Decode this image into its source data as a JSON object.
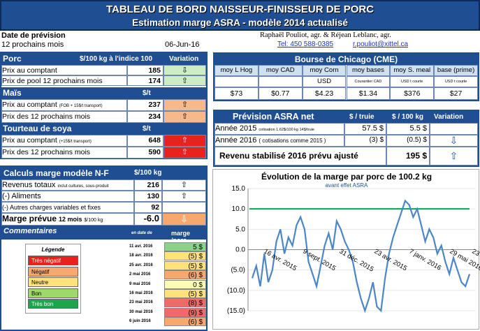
{
  "title": {
    "line1": "TABLEAU DE BORD NAISSEUR-FINISSEUR DE PORC",
    "line2": "Estimation marge ASRA - modèle 2014 actualisé"
  },
  "header": {
    "date_label": "Date de prévision",
    "period": "12 prochains mois",
    "date": "06-Jun-16",
    "authors": "Raphaël Pouliot, agr.     &     Réjean Leblanc, agr.",
    "tel": "Tel:    450 588-0385",
    "email": "r.pouliot@xittel.ca"
  },
  "porc": {
    "title": "Porc",
    "unit": "$/100 kg à l'indice 100",
    "variation": "Variation",
    "rows": [
      {
        "label": "Prix au comptant",
        "value": "185",
        "arrow": "⇩"
      },
      {
        "label": "Prix de pool 12 prochains mois",
        "value": "174",
        "arrow": "⇧"
      }
    ]
  },
  "mais": {
    "title": "Maïs",
    "unit": "$/t",
    "rows": [
      {
        "label": "Prix au comptant",
        "sub": "(FOB + 15$/t transport)",
        "value": "237",
        "arrow": "⇧"
      },
      {
        "label": "Prix des 12 prochains mois",
        "value": "234",
        "arrow": "⇧"
      }
    ]
  },
  "soya": {
    "title": "Tourteau de soya",
    "unit": "$/t",
    "rows": [
      {
        "label": "Prix au comptant",
        "sub": "(+15$/t transport)",
        "value": "648",
        "arrow": "⇧"
      },
      {
        "label": "Prix des 12 prochains mois",
        "value": "590",
        "arrow": "⇧"
      }
    ]
  },
  "chicago": {
    "title": "Bourse de Chicago (CME)",
    "cols": [
      "moy L Hog",
      "moy CAD",
      "moy Corn",
      "moy bases",
      "moy S. meal",
      "base (prime)"
    ],
    "units": [
      "",
      "",
      "USD",
      "Courantier CAD",
      "USD t courte",
      "USD t courte"
    ],
    "values": [
      "$73",
      "$0.77",
      "$4.23",
      "$1.34",
      "$376",
      "$27"
    ]
  },
  "asra": {
    "title": "Prévision ASRA net",
    "col1": "$ / truie",
    "col2": "$ / 100 kg",
    "col3": "Variation",
    "rows": [
      {
        "label": "Année 2015",
        "sub": "cotisation 1.62$/100 kg 14$/truie",
        "v1": "57.5  $",
        "v2": "5.5  $",
        "arrow": ""
      },
      {
        "label": "Année 2016",
        "sub": "( cotisations comme 2015 )",
        "v1": "(3) $",
        "v2": "(0.5) $",
        "arrow": "⇩"
      }
    ],
    "total_label": "Revenu stabilisé 2016 prévu  ajusté",
    "total_value": "195  $",
    "total_arrow": "⇧"
  },
  "calculs": {
    "title": "Calculs marge  modèle N-F",
    "unit": "$/100 kg",
    "rows": [
      {
        "label": "Revenus totaux",
        "sub": "inclut cultures, sous-produit",
        "value": "216",
        "arrow": "⇧"
      },
      {
        "label": "(-) Aliments",
        "value": "130",
        "arrow": "⇧"
      },
      {
        "label": "(-) Autres charges variables et fixes",
        "value": "92",
        "arrow": ""
      }
    ],
    "marge_label": "Marge prévue",
    "marge_period": "12 mois",
    "marge_unit": "$/100 kg",
    "marge_value": "-6.0",
    "marge_arrow": "⇩"
  },
  "commentaires": {
    "title": "Commentaires",
    "date_col": "en date de",
    "marge_col": "marge /porc",
    "rows": [
      {
        "date": "11 avr. 2016",
        "value": "5  $",
        "color": "#8bd28b"
      },
      {
        "date": "18 avr. 2016",
        "value": "(5)  $",
        "color": "#ffe27a"
      },
      {
        "date": "25 avr. 2016",
        "value": "(5)  $",
        "color": "#ffe27a"
      },
      {
        "date": "2 mai 2016",
        "value": "(6)  $",
        "color": "#f7a86f"
      },
      {
        "date": "9 mai 2016",
        "value": "0  $",
        "color": "#ffffb0"
      },
      {
        "date": "16 mai 2016",
        "value": "(5)  $",
        "color": "#ffe27a"
      },
      {
        "date": "23 mai 2016",
        "value": "(8)  $",
        "color": "#f06a6a"
      },
      {
        "date": "30 mai 2016",
        "value": "(9)  $",
        "color": "#f06a6a"
      },
      {
        "date": "6 juin 2016",
        "value": "(6)  $",
        "color": "#f7a86f"
      }
    ]
  },
  "legend": {
    "title": "Légende",
    "items": [
      {
        "label": "Très négatif",
        "color": "#e8231d"
      },
      {
        "label": "Négatif",
        "color": "#f7a86f"
      },
      {
        "label": "Neutre",
        "color": "#ffe27a"
      },
      {
        "label": "Bon",
        "color": "#9ed86a"
      },
      {
        "label": "Très bon",
        "color": "#1ea44a"
      }
    ]
  },
  "chart_data": {
    "type": "line",
    "title": "Évolution de la marge par porc de 100.2 kg",
    "subtitle": "avant effet ASRA",
    "ylim": [
      -15,
      15
    ],
    "yticks": [
      "15.0",
      "10.0",
      "5.0",
      "0.0",
      "(5.0)",
      "(10.0)",
      "(15.0)"
    ],
    "xticks": [
      "16 avr. 2015",
      "9 sept. 2015",
      "31 déc. 2015",
      "23 avr. 2015",
      "7 janv. 2016",
      "29 mai 2016",
      "23 mai 2016"
    ],
    "reference_line": 10,
    "reference_color": "#00a651",
    "values": [
      -7,
      -4,
      -9,
      -1,
      -8,
      -5,
      2,
      5,
      -1,
      3,
      1,
      6,
      8,
      5,
      -3,
      -6,
      -9,
      -4,
      1,
      4,
      0,
      7,
      5,
      2,
      0,
      -3,
      -8,
      -12,
      -15,
      -12,
      -8,
      -14,
      -15,
      -7,
      -1,
      3,
      6,
      9,
      12,
      11,
      8,
      10,
      6,
      2,
      5,
      3,
      -1,
      1,
      -3,
      -6,
      -2,
      -5,
      -8,
      -9,
      -6
    ]
  }
}
